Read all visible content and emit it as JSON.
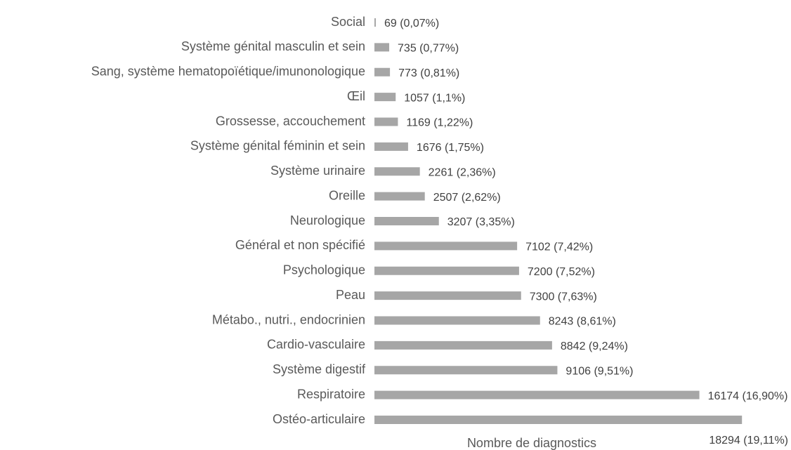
{
  "chart_data": {
    "type": "barh",
    "x_label": "Nombre de diagnostics",
    "categories": [
      "Social",
      "Système génital masculin et sein",
      "Sang, système hematopoïétique/imunonologique",
      "Œil",
      "Grossesse, accouchement",
      "Système génital féminin et sein",
      "Système urinaire",
      "Oreille",
      "Neurologique",
      "Général et non spécifié",
      "Psychologique",
      "Peau",
      "Métabo., nutri., endocrinien",
      "Cardio-vasculaire",
      "Système digestif",
      "Respiratoire",
      "Ostéo-articulaire"
    ],
    "values": [
      69,
      735,
      773,
      1057,
      1169,
      1676,
      2261,
      2507,
      3207,
      7102,
      7200,
      7300,
      8243,
      8842,
      9106,
      16174,
      18294
    ],
    "value_labels": [
      "69 (0,07%)",
      "735 (0,77%)",
      "773 (0,81%)",
      "1057 (1,1%)",
      "1169 (1,22%)",
      "1676 (1,75%)",
      "2261 (2,36%)",
      "2507 (2,62%)",
      "3207 (3,35%)",
      "7102 (7,42%)",
      "7200 (7,52%)",
      "7300 (7,63%)",
      "8243 (8,61%)",
      "8842 (9,24%)",
      "9106 (9,51%)",
      "16174 (16,90%)",
      "18294 (19,11%)"
    ],
    "color": "#a6a6a6",
    "xlim": [
      0,
      20000
    ]
  }
}
